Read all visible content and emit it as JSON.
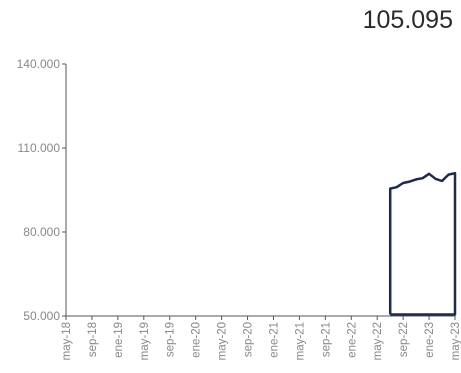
{
  "headline_value": "105.095",
  "chart_data": {
    "type": "line",
    "title": "",
    "xlabel": "",
    "ylabel": "",
    "ylim": [
      50000,
      140000
    ],
    "yticks": [
      50000,
      80000,
      110000,
      140000
    ],
    "ytick_labels": [
      "50.000",
      "80.000",
      "110.000",
      "140.000"
    ],
    "xtick_labels": [
      "may-18",
      "sep-18",
      "ene-19",
      "may-19",
      "sep-19",
      "ene-20",
      "may-20",
      "sep-20",
      "ene-21",
      "may-21",
      "sep-21",
      "ene-22",
      "may-22",
      "sep-22",
      "ene-23",
      "may-23"
    ],
    "grid": false,
    "color": "#1f2a4f",
    "series": [
      {
        "x": [
          "jul-22",
          "ago-22",
          "sep-22",
          "oct-22",
          "nov-22",
          "dic-22",
          "ene-23",
          "feb-23",
          "mar-23",
          "abr-23",
          "may-23"
        ],
        "values": [
          95500,
          96000,
          97500,
          98000,
          98800,
          99200,
          100800,
          99000,
          98200,
          100500,
          101000
        ]
      }
    ]
  }
}
